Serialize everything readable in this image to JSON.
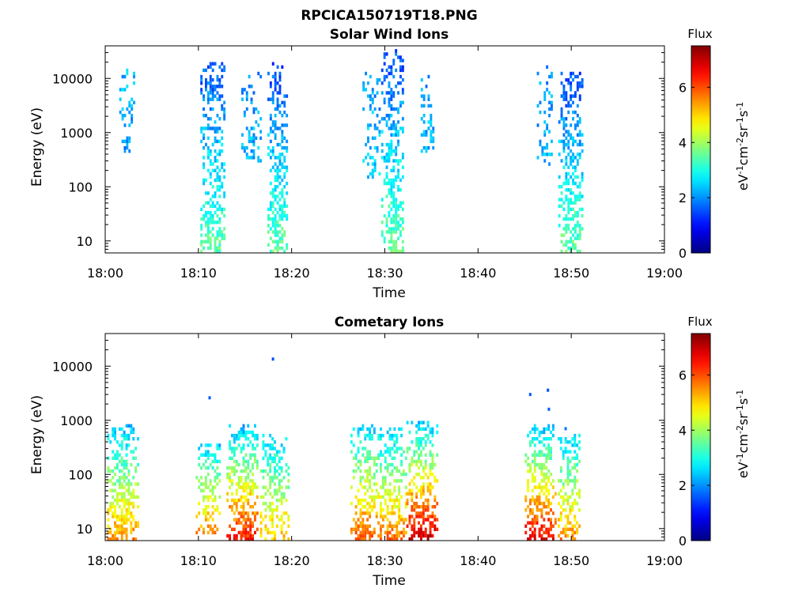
{
  "figure_title": "RPCICA150719T18.PNG",
  "chart_data": [
    {
      "type": "heatmap",
      "title": "Solar Wind Ions",
      "xlabel": "Time",
      "ylabel": "Energy (eV)",
      "x_ticks": [
        "18:00",
        "18:10",
        "18:20",
        "18:30",
        "18:40",
        "18:50",
        "19:00"
      ],
      "xlim": [
        "18:00",
        "19:00"
      ],
      "y_scale": "log",
      "y_ticks": [
        10,
        100,
        1000,
        10000
      ],
      "ylim": [
        6,
        40000
      ],
      "colorbar": {
        "title": "Flux",
        "label": "eV-1cm-2sr-1s-1",
        "ticks": [
          0,
          2,
          4,
          6
        ],
        "range": [
          0,
          7.5
        ],
        "colormap": "jet"
      },
      "bursts": [
        {
          "start_min": 1.5,
          "end_min": 3.2,
          "e_low": 400,
          "e_high": 15000,
          "flux_low": 2.0,
          "flux_high": 2.3,
          "density": 0.35
        },
        {
          "start_min": 10.2,
          "end_min": 12.8,
          "e_low": 6,
          "e_high": 19000,
          "flux_low": 3.5,
          "flux_high": 1.5,
          "density": 0.55
        },
        {
          "start_min": 14.6,
          "end_min": 16.6,
          "e_low": 300,
          "e_high": 14000,
          "flux_low": 2.3,
          "flux_high": 2.0,
          "density": 0.35
        },
        {
          "start_min": 17.4,
          "end_min": 19.4,
          "e_low": 6,
          "e_high": 20000,
          "flux_low": 3.5,
          "flux_high": 1.4,
          "density": 0.6
        },
        {
          "start_min": 27.6,
          "end_min": 29.4,
          "e_low": 150,
          "e_high": 13000,
          "flux_low": 2.5,
          "flux_high": 2.0,
          "density": 0.35
        },
        {
          "start_min": 29.6,
          "end_min": 32.0,
          "e_low": 6,
          "e_high": 35000,
          "flux_low": 3.6,
          "flux_high": 1.4,
          "density": 0.6
        },
        {
          "start_min": 33.6,
          "end_min": 35.3,
          "e_low": 400,
          "e_high": 11000,
          "flux_low": 2.3,
          "flux_high": 2.1,
          "density": 0.35
        },
        {
          "start_min": 46.3,
          "end_min": 48.0,
          "e_low": 250,
          "e_high": 17000,
          "flux_low": 2.3,
          "flux_high": 2.0,
          "density": 0.35
        },
        {
          "start_min": 48.6,
          "end_min": 51.3,
          "e_low": 6,
          "e_high": 14000,
          "flux_low": 3.6,
          "flux_high": 1.4,
          "density": 0.6
        }
      ]
    },
    {
      "type": "heatmap",
      "title": "Cometary Ions",
      "xlabel": "Time",
      "ylabel": "Energy (eV)",
      "x_ticks": [
        "18:00",
        "18:10",
        "18:20",
        "18:30",
        "18:40",
        "18:50",
        "19:00"
      ],
      "xlim": [
        "18:00",
        "19:00"
      ],
      "y_scale": "log",
      "y_ticks": [
        10,
        100,
        1000,
        10000
      ],
      "ylim": [
        6,
        40000
      ],
      "colorbar": {
        "title": "Flux",
        "label": "eV-1cm-2sr-1s-1",
        "ticks": [
          0,
          2,
          4,
          6
        ],
        "range": [
          0,
          7.5
        ],
        "colormap": "jet"
      },
      "bursts": [
        {
          "start_min": 0.2,
          "end_min": 3.4,
          "e_low": 6,
          "e_high": 800,
          "flux_low": 5.6,
          "flux_high": 2.3,
          "density": 0.6
        },
        {
          "start_min": 9.7,
          "end_min": 12.3,
          "e_low": 8,
          "e_high": 350,
          "flux_low": 5.6,
          "flux_high": 2.5,
          "density": 0.6
        },
        {
          "start_min": 13.0,
          "end_min": 16.3,
          "e_low": 6,
          "e_high": 800,
          "flux_low": 6.5,
          "flux_high": 2.3,
          "density": 0.65
        },
        {
          "start_min": 16.6,
          "end_min": 19.6,
          "e_low": 6,
          "e_high": 600,
          "flux_low": 5.2,
          "flux_high": 2.4,
          "density": 0.55
        },
        {
          "start_min": 26.3,
          "end_min": 29.2,
          "e_low": 6,
          "e_high": 900,
          "flux_low": 6.0,
          "flux_high": 2.4,
          "density": 0.6
        },
        {
          "start_min": 29.2,
          "end_min": 32.2,
          "e_low": 6,
          "e_high": 700,
          "flux_low": 5.8,
          "flux_high": 2.4,
          "density": 0.6
        },
        {
          "start_min": 32.3,
          "end_min": 35.6,
          "e_low": 6,
          "e_high": 1000,
          "flux_low": 7.0,
          "flux_high": 2.3,
          "density": 0.65
        },
        {
          "start_min": 45.0,
          "end_min": 48.3,
          "e_low": 6,
          "e_high": 800,
          "flux_low": 6.8,
          "flux_high": 2.3,
          "density": 0.6
        },
        {
          "start_min": 48.3,
          "end_min": 51.0,
          "e_low": 6,
          "e_high": 600,
          "flux_low": 5.6,
          "flux_high": 2.4,
          "density": 0.55
        }
      ],
      "isolated_points": [
        {
          "time_min": 18.0,
          "energy": 13500,
          "flux": 1.5
        },
        {
          "time_min": 11.2,
          "energy": 2600,
          "flux": 1.6
        },
        {
          "time_min": 45.6,
          "energy": 3000,
          "flux": 1.6
        },
        {
          "time_min": 47.5,
          "energy": 3600,
          "flux": 1.5
        },
        {
          "time_min": 47.6,
          "energy": 1600,
          "flux": 1.6
        },
        {
          "time_min": 49.4,
          "energy": 700,
          "flux": 1.8
        }
      ]
    }
  ]
}
